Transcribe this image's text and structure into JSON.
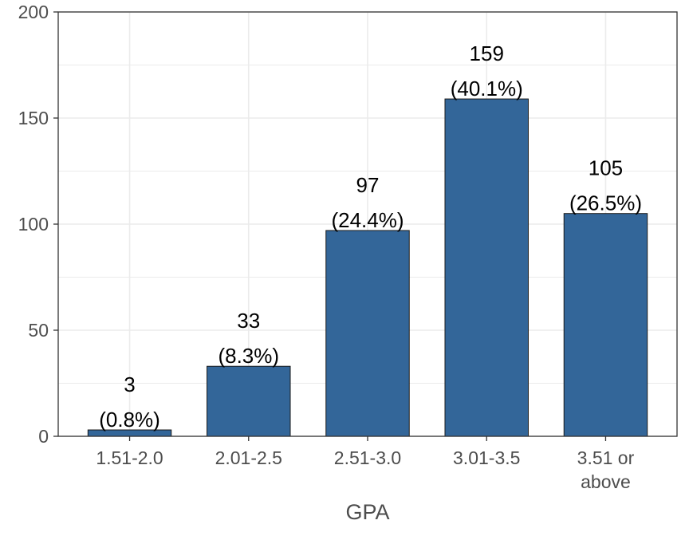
{
  "chart_data": {
    "type": "bar",
    "title": "",
    "xlabel": "GPA",
    "ylabel": "",
    "categories": [
      [
        "1.51-2.0"
      ],
      [
        "2.01-2.5"
      ],
      [
        "2.51-3.0"
      ],
      [
        "3.01-3.5"
      ],
      [
        "3.51 or",
        "above"
      ]
    ],
    "values": [
      3,
      33,
      97,
      159,
      105
    ],
    "labels": [
      [
        "3",
        "(0.8%)"
      ],
      [
        "33",
        "(8.3%)"
      ],
      [
        "97",
        "(24.4%)"
      ],
      [
        "159",
        "(40.1%)"
      ],
      [
        "105",
        "(26.5%)"
      ]
    ],
    "ylim": [
      0,
      200
    ],
    "yticks": [
      0,
      50,
      100,
      150,
      200
    ],
    "grid": true,
    "legend": "none",
    "colors": {
      "bar": "#336699",
      "bar_border": "#1a1a1a",
      "grid": "#ebebeb",
      "panel_border": "#333333"
    }
  }
}
